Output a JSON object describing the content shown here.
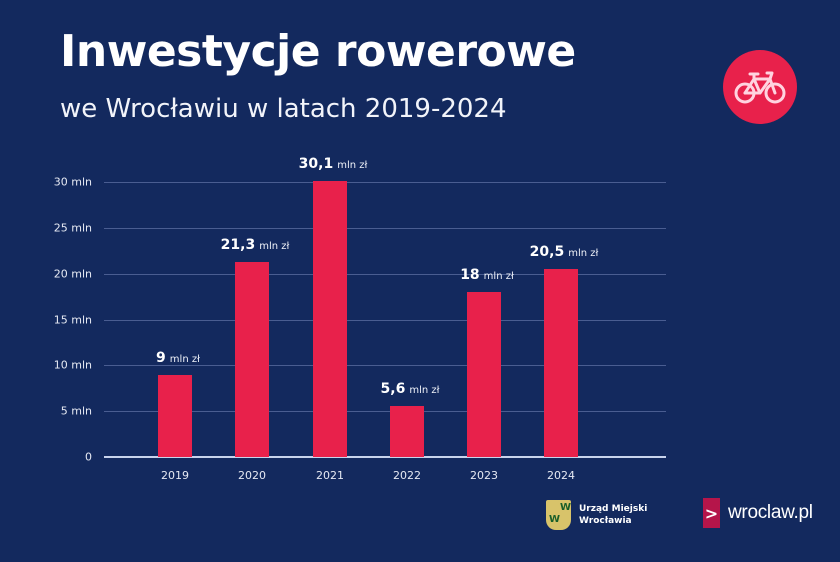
{
  "header": {
    "title": "Inwestycje rowerowe",
    "subtitle": "we Wrocławiu w latach 2019-2024",
    "badge_icon": "bicycle-icon",
    "accent_color": "#e8214b",
    "background_color": "#13295e"
  },
  "chart_data": {
    "type": "bar",
    "title": "Inwestycje rowerowe we Wrocławiu w latach 2019-2024",
    "xlabel": "",
    "ylabel": "",
    "categories": [
      "2019",
      "2020",
      "2021",
      "2022",
      "2023",
      "2024"
    ],
    "values": [
      9,
      21.3,
      30.1,
      5.6,
      18,
      20.5
    ],
    "value_labels": [
      {
        "num": "9",
        "unit": "mln zł"
      },
      {
        "num": "21,3",
        "unit": "mln zł"
      },
      {
        "num": "30,1",
        "unit": "mln zł"
      },
      {
        "num": "5,6",
        "unit": "mln zł"
      },
      {
        "num": "18",
        "unit": "mln zł"
      },
      {
        "num": "20,5",
        "unit": "mln zł"
      }
    ],
    "yticks": [
      "0",
      "5 mln",
      "10 mln",
      "15 mln",
      "20 mln",
      "25 mln",
      "30 mln"
    ],
    "ytick_values": [
      0,
      5,
      10,
      15,
      20,
      25,
      30
    ],
    "ylim": [
      0,
      30
    ],
    "grid": true,
    "legend": null,
    "bar_color": "#e8214b"
  },
  "footer": {
    "um_line1": "Urząd Miejski",
    "um_line2": "Wrocławia",
    "site_arrow": ">",
    "site": "wroclaw.pl"
  }
}
